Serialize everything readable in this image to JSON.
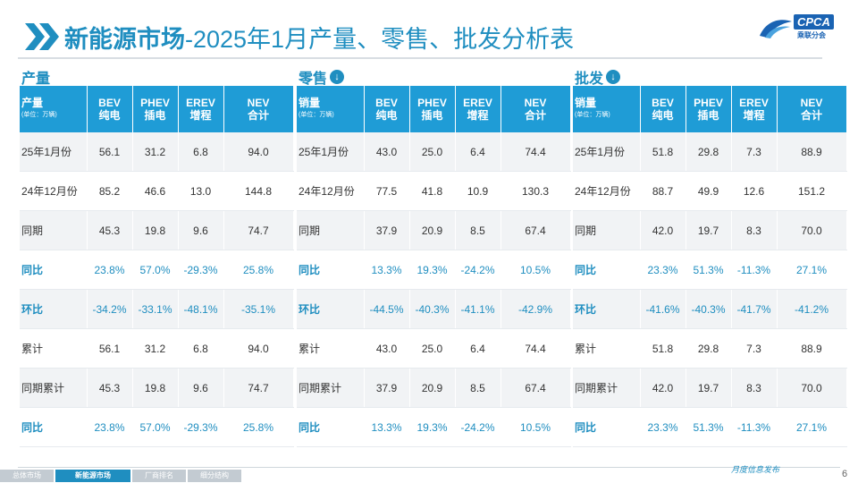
{
  "header": {
    "title_bold": "新能源市场",
    "title_rest": "-2025年1月产量、零售、批发分析表",
    "logo_text": "CPCA",
    "logo_sub": "乘联分会"
  },
  "sections": [
    {
      "label": "产量",
      "has_icon": false,
      "head": {
        "col0": "产量",
        "col0_unit": "(单位：万辆)",
        "c1a": "BEV",
        "c1b": "纯电",
        "c2a": "PHEV",
        "c2b": "插电",
        "c3a": "EREV",
        "c3b": "增程",
        "c4a": "NEV",
        "c4b": "合计"
      },
      "rows": [
        [
          "25年1月份",
          "56.1",
          "31.2",
          "6.8",
          "94.0"
        ],
        [
          "24年12月份",
          "85.2",
          "46.6",
          "13.0",
          "144.8"
        ],
        [
          "同期",
          "45.3",
          "19.8",
          "9.6",
          "74.7"
        ],
        [
          "同比",
          "23.8%",
          "57.0%",
          "-29.3%",
          "25.8%"
        ],
        [
          "环比",
          "-34.2%",
          "-33.1%",
          "-48.1%",
          "-35.1%"
        ],
        [
          "累计",
          "56.1",
          "31.2",
          "6.8",
          "94.0"
        ],
        [
          "同期累计",
          "45.3",
          "19.8",
          "9.6",
          "74.7"
        ],
        [
          "同比",
          "23.8%",
          "57.0%",
          "-29.3%",
          "25.8%"
        ]
      ]
    },
    {
      "label": "零售",
      "has_icon": true,
      "head": {
        "col0": "销量",
        "col0_unit": "(单位：万辆)",
        "c1a": "BEV",
        "c1b": "纯电",
        "c2a": "PHEV",
        "c2b": "插电",
        "c3a": "EREV",
        "c3b": "增程",
        "c4a": "NEV",
        "c4b": "合计"
      },
      "rows": [
        [
          "25年1月份",
          "43.0",
          "25.0",
          "6.4",
          "74.4"
        ],
        [
          "24年12月份",
          "77.5",
          "41.8",
          "10.9",
          "130.3"
        ],
        [
          "同期",
          "37.9",
          "20.9",
          "8.5",
          "67.4"
        ],
        [
          "同比",
          "13.3%",
          "19.3%",
          "-24.2%",
          "10.5%"
        ],
        [
          "环比",
          "-44.5%",
          "-40.3%",
          "-41.1%",
          "-42.9%"
        ],
        [
          "累计",
          "43.0",
          "25.0",
          "6.4",
          "74.4"
        ],
        [
          "同期累计",
          "37.9",
          "20.9",
          "8.5",
          "67.4"
        ],
        [
          "同比",
          "13.3%",
          "19.3%",
          "-24.2%",
          "10.5%"
        ]
      ]
    },
    {
      "label": "批发",
      "has_icon": true,
      "head": {
        "col0": "销量",
        "col0_unit": "(单位：万辆)",
        "c1a": "BEV",
        "c1b": "纯电",
        "c2a": "PHEV",
        "c2b": "插电",
        "c3a": "EREV",
        "c3b": "增程",
        "c4a": "NEV",
        "c4b": "合计"
      },
      "rows": [
        [
          "25年1月份",
          "51.8",
          "29.8",
          "7.3",
          "88.9"
        ],
        [
          "24年12月份",
          "88.7",
          "49.9",
          "12.6",
          "151.2"
        ],
        [
          "同期",
          "42.0",
          "19.7",
          "8.3",
          "70.0"
        ],
        [
          "同比",
          "23.3%",
          "51.3%",
          "-11.3%",
          "27.1%"
        ],
        [
          "环比",
          "-41.6%",
          "-40.3%",
          "-41.7%",
          "-41.2%"
        ],
        [
          "累计",
          "51.8",
          "29.8",
          "7.3",
          "88.9"
        ],
        [
          "同期累计",
          "42.0",
          "19.7",
          "8.3",
          "70.0"
        ],
        [
          "同比",
          "23.3%",
          "51.3%",
          "-11.3%",
          "27.1%"
        ]
      ]
    }
  ],
  "highlight_rows": [
    3,
    4,
    7
  ],
  "icons": {
    "section_icon": "arrow-down-circle-icon",
    "title_icon": "double-chevron-icon"
  },
  "colors": {
    "accent": "#1f8ec0",
    "header_bg": "#1f9cd6"
  },
  "footer": {
    "tabs": [
      "总体市场",
      "新能源市场",
      "厂商排名",
      "细分结构"
    ],
    "active_tab": 1,
    "note": "月度信息发布",
    "page_number": "6"
  }
}
